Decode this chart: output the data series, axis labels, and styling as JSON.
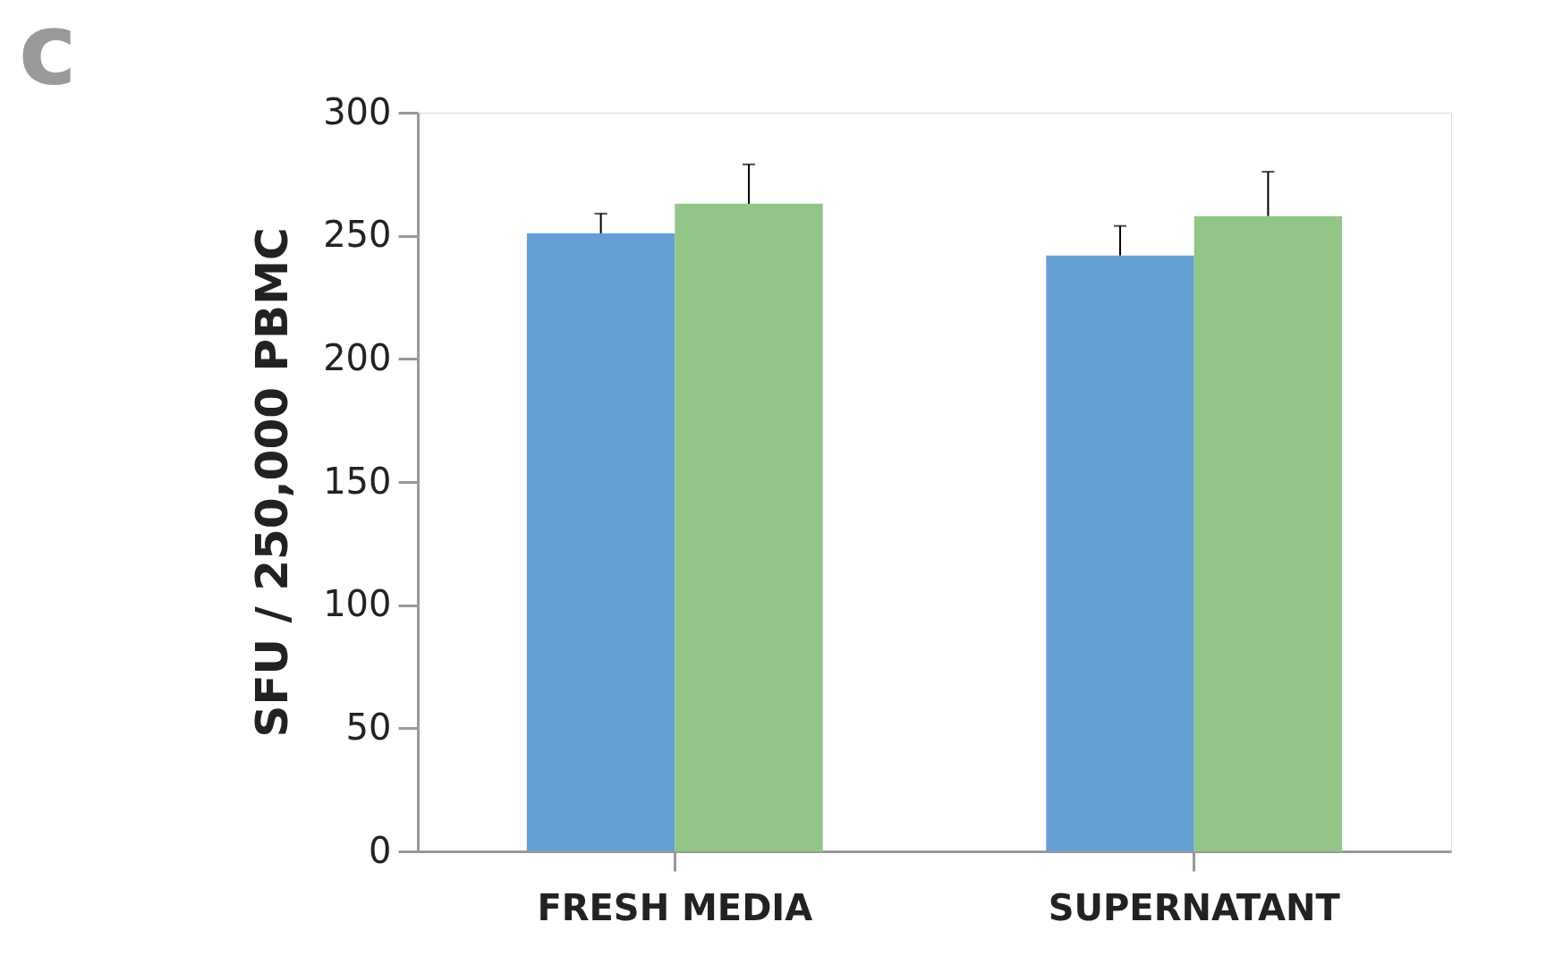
{
  "chart_data": {
    "type": "bar",
    "title": "c",
    "ylabel": "SFU / 250,000 PBMC",
    "categories": [
      "FRESH MEDIA",
      "SUPERNATANT"
    ],
    "series": [
      {
        "color": "#659ed3",
        "values": [
          251,
          242
        ],
        "errors": [
          8,
          12
        ]
      },
      {
        "color": "#92c686",
        "values": [
          263,
          258
        ],
        "errors": [
          16,
          18
        ]
      }
    ],
    "ylim": [
      0,
      300
    ],
    "yticks": [
      0,
      50,
      100,
      150,
      200,
      250,
      300
    ],
    "grid": false,
    "legend": false
  }
}
